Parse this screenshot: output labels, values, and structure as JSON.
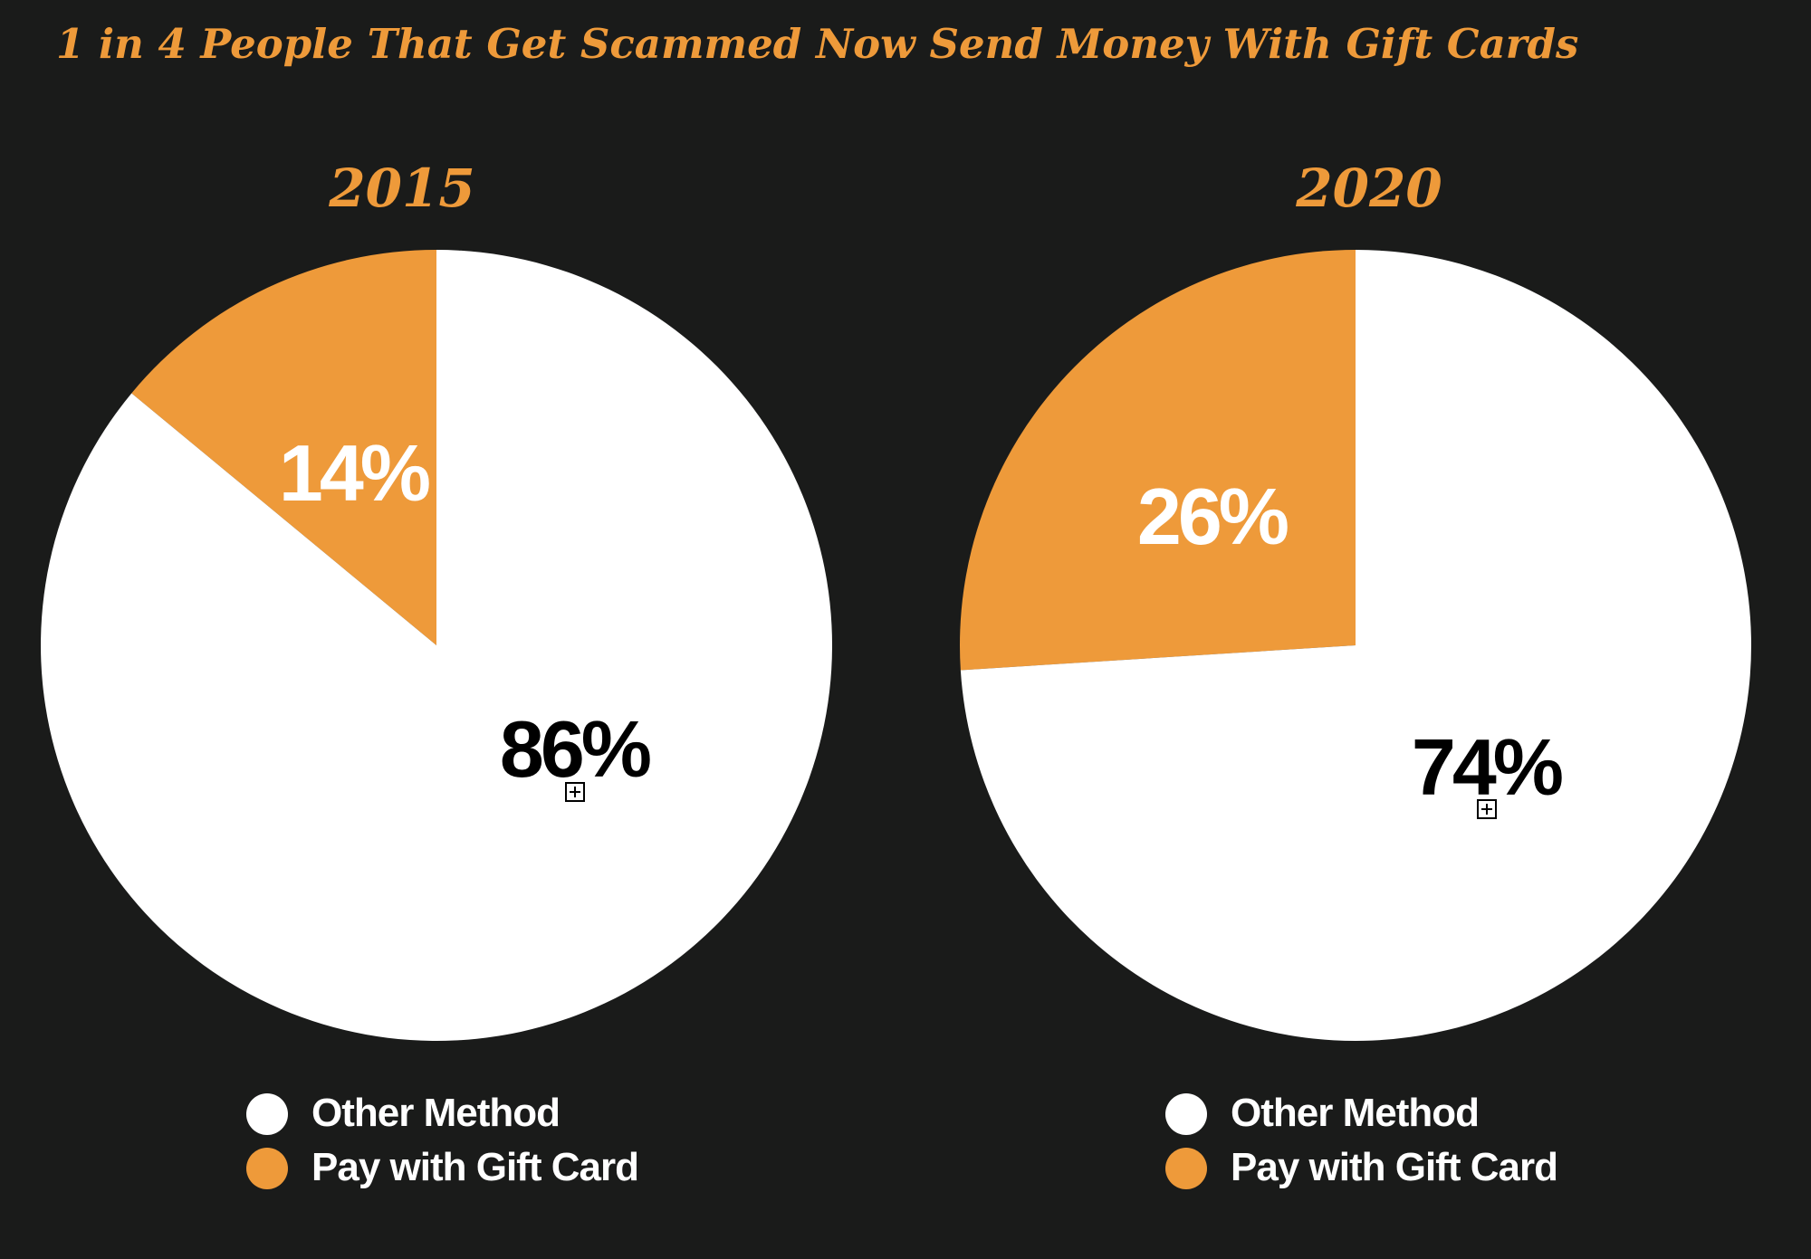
{
  "title": "1 in 4 People That Get Scammed Now Send Money With Gift Cards",
  "colors": {
    "background": "#1a1b1a",
    "accent": "#ee9a3a",
    "other": "#ffffff",
    "gift_card": "#ee9a3a"
  },
  "chart_data": [
    {
      "type": "pie",
      "title": "2015",
      "labels": [
        "Pay with Gift Card",
        "Other Method"
      ],
      "values": [
        14,
        86
      ],
      "data_labels": [
        "14%",
        "86%"
      ],
      "legend": [
        "Other Method",
        "Pay with Gift Card"
      ],
      "legend_position": "bottom"
    },
    {
      "type": "pie",
      "title": "2020",
      "labels": [
        "Pay with Gift Card",
        "Other Method"
      ],
      "values": [
        26,
        74
      ],
      "data_labels": [
        "26%",
        "74%"
      ],
      "legend": [
        "Other Method",
        "Pay with Gift Card"
      ],
      "legend_position": "bottom"
    }
  ]
}
